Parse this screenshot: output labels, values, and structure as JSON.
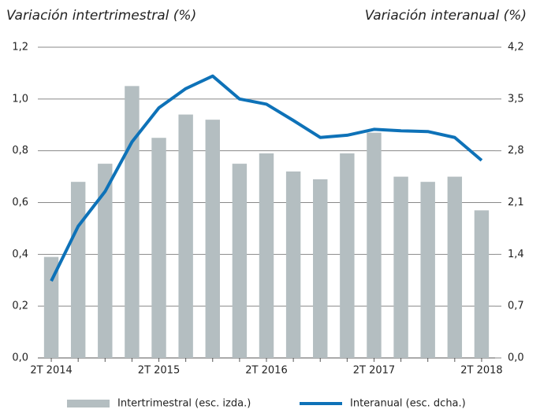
{
  "chart_data": {
    "type": "bar",
    "y_label": "Variación intertrimestral (%)",
    "y2_label": "Variación interanual (%)",
    "categories": [
      "2T 2014",
      null,
      null,
      null,
      "2T 2015",
      null,
      null,
      null,
      "2T 2016",
      null,
      null,
      null,
      "2T 2017",
      null,
      null,
      null,
      "2T 2018"
    ],
    "series": [
      {
        "name": "Intertrimestral (esc. izda.)",
        "type": "bar",
        "color": "#b4bec1",
        "axis": "y",
        "values": [
          0.39,
          0.68,
          0.75,
          1.05,
          0.85,
          0.94,
          0.92,
          0.75,
          0.79,
          0.72,
          0.69,
          0.79,
          0.87,
          0.7,
          0.68,
          0.7,
          0.57
        ]
      },
      {
        "name": "Interanual (esc. dcha.)",
        "type": "line",
        "color": "#0e72b8",
        "axis": "y2",
        "values": [
          1.04,
          1.78,
          2.25,
          2.92,
          3.38,
          3.64,
          3.81,
          3.5,
          3.43,
          3.21,
          2.98,
          3.01,
          3.09,
          3.07,
          3.06,
          2.98,
          2.67
        ]
      }
    ],
    "ylim": [
      0,
      1.2
    ],
    "yticks": [
      {
        "value": 0,
        "label": "0,0"
      },
      {
        "value": 0.2,
        "label": "0,2"
      },
      {
        "value": 0.4,
        "label": "0,4"
      },
      {
        "value": 0.6,
        "label": "0,6"
      },
      {
        "value": 0.8,
        "label": "0,8"
      },
      {
        "value": 1.0,
        "label": "1,0"
      },
      {
        "value": 1.2,
        "label": "1,2"
      }
    ],
    "y2lim": [
      0,
      4.2
    ],
    "y2ticks": [
      {
        "value": 0,
        "label": "0,0"
      },
      {
        "value": 0.7,
        "label": "0,7"
      },
      {
        "value": 1.4,
        "label": "1,4"
      },
      {
        "value": 2.1,
        "label": "2,1"
      },
      {
        "value": 2.8,
        "label": "2,8"
      },
      {
        "value": 3.5,
        "label": "3,5"
      },
      {
        "value": 4.2,
        "label": "4,2"
      }
    ],
    "grid": true,
    "legend": "bottom"
  }
}
